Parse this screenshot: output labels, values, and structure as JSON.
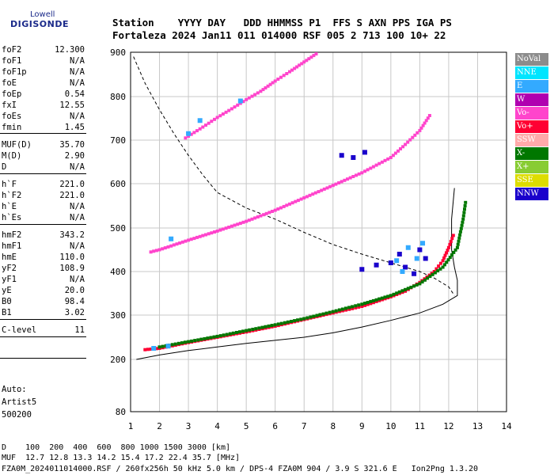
{
  "logo": {
    "line1": "Lowell",
    "line2": "DIGISONDE"
  },
  "header": {
    "row1": "Station    YYYY DAY   DDD HHMMSS P1  FFS S AXN PPS IGA PS",
    "row2": "Fortaleza 2024 Jan11 011 014000 RSF 005 2 713 100 10+ 22"
  },
  "params": [
    {
      "label": "foF2",
      "value": "12.300"
    },
    {
      "label": "foF1",
      "value": "N/A"
    },
    {
      "label": "foF1p",
      "value": "N/A"
    },
    {
      "label": "foE",
      "value": "N/A"
    },
    {
      "label": "foEp",
      "value": "0.54"
    },
    {
      "label": "fxI",
      "value": "12.55"
    },
    {
      "label": "foEs",
      "value": "N/A"
    },
    {
      "label": "fmin",
      "value": "1.45"
    },
    {
      "label": "MUF(D)",
      "value": "35.70"
    },
    {
      "label": "M(D)",
      "value": "2.90"
    },
    {
      "label": "D",
      "value": "N/A"
    },
    {
      "label": "h`F",
      "value": "221.0"
    },
    {
      "label": "h`F2",
      "value": "221.0"
    },
    {
      "label": "h`E",
      "value": "N/A"
    },
    {
      "label": "h`Es",
      "value": "N/A"
    },
    {
      "label": "hmF2",
      "value": "343.2"
    },
    {
      "label": "hmF1",
      "value": "N/A"
    },
    {
      "label": "hmE",
      "value": "110.0"
    },
    {
      "label": "yF2",
      "value": "108.9"
    },
    {
      "label": "yF1",
      "value": "N/A"
    },
    {
      "label": "yE",
      "value": "20.0"
    },
    {
      "label": "B0",
      "value": "98.4"
    },
    {
      "label": "B1",
      "value": "3.02"
    },
    {
      "label": "C-level",
      "value": "11"
    }
  ],
  "auto": {
    "line1": "Auto:",
    "line2": "Artist5",
    "line3": "500200"
  },
  "footer": {
    "line1": "D    100  200  400  600  800 1000 1500 3000 [km]",
    "line2": "MUF  12.7 12.8 13.3 14.2 15.4 17.2 22.4 35.7 [MHz]",
    "line3": "FZA0M_2024011014000.RSF / 260fx256h 50 kHz 5.0 km / DPS-4 FZA0M 904 / 3.9 S 321.6 E   Ion2Png 1.3.20"
  },
  "legend": [
    {
      "label": "NoVal",
      "color": "#8c8c8c"
    },
    {
      "label": "NNE",
      "color": "#00e5ff"
    },
    {
      "label": "E",
      "color": "#33aaff"
    },
    {
      "label": "W",
      "color": "#b000b0"
    },
    {
      "label": "Vo-",
      "color": "#ff44cc"
    },
    {
      "label": "Vo+",
      "color": "#ff0033"
    },
    {
      "label": "SSW",
      "color": "#ffaaaa"
    },
    {
      "label": "X-",
      "color": "#007700"
    },
    {
      "label": "X+",
      "color": "#88cc33"
    },
    {
      "label": "SSE",
      "color": "#dddd00"
    },
    {
      "label": "NNW",
      "color": "#1a00cc"
    }
  ],
  "chart_data": {
    "type": "scatter",
    "xlabel": "",
    "ylabel": "",
    "xlim": [
      1,
      14
    ],
    "ylim": [
      80,
      900
    ],
    "x_ticks": [
      1,
      2,
      3,
      4,
      5,
      6,
      7,
      8,
      9,
      10,
      11,
      12,
      13,
      14
    ],
    "y_ticks": [
      80,
      200,
      300,
      400,
      500,
      600,
      700,
      800,
      900
    ],
    "grid": true,
    "traces": [
      {
        "name": "O-trace 1st hop",
        "color": "#ff0033",
        "points": [
          [
            1.5,
            222
          ],
          [
            2,
            225
          ],
          [
            3,
            238
          ],
          [
            4,
            250
          ],
          [
            5,
            262
          ],
          [
            6,
            275
          ],
          [
            7,
            290
          ],
          [
            8,
            305
          ],
          [
            9,
            320
          ],
          [
            10,
            342
          ],
          [
            10.5,
            355
          ],
          [
            11,
            375
          ],
          [
            11.5,
            400
          ],
          [
            11.8,
            425
          ],
          [
            12,
            455
          ],
          [
            12.2,
            490
          ]
        ]
      },
      {
        "name": "X-trace 1st hop",
        "color": "#007700",
        "points": [
          [
            2,
            228
          ],
          [
            3,
            240
          ],
          [
            4,
            252
          ],
          [
            5,
            265
          ],
          [
            6,
            278
          ],
          [
            7,
            292
          ],
          [
            8,
            308
          ],
          [
            9,
            325
          ],
          [
            10,
            345
          ],
          [
            11,
            372
          ],
          [
            11.8,
            410
          ],
          [
            12.3,
            455
          ],
          [
            12.5,
            520
          ],
          [
            12.6,
            565
          ]
        ]
      },
      {
        "name": "O-trace 2nd hop",
        "color": "#ff44cc",
        "points": [
          [
            1.7,
            445
          ],
          [
            2,
            450
          ],
          [
            3,
            472
          ],
          [
            4,
            493
          ],
          [
            5,
            515
          ],
          [
            6,
            540
          ],
          [
            7,
            568
          ],
          [
            8,
            596
          ],
          [
            9,
            625
          ],
          [
            10,
            660
          ],
          [
            10.5,
            690
          ],
          [
            11,
            722
          ],
          [
            11.4,
            762
          ]
        ]
      },
      {
        "name": "O-trace 3rd hop",
        "color": "#ff44cc",
        "points": [
          [
            2.9,
            705
          ],
          [
            3.5,
            730
          ],
          [
            4,
            752
          ],
          [
            4.5,
            772
          ],
          [
            5,
            793
          ],
          [
            5.5,
            812
          ],
          [
            6,
            835
          ],
          [
            6.5,
            856
          ],
          [
            7,
            878
          ],
          [
            7.5,
            900
          ]
        ]
      },
      {
        "name": "NNW echoes",
        "color": "#1a00cc",
        "points": [
          [
            9,
            405
          ],
          [
            9.5,
            415
          ],
          [
            10,
            420
          ],
          [
            10.3,
            440
          ],
          [
            10.5,
            410
          ],
          [
            10.8,
            395
          ],
          [
            11,
            450
          ],
          [
            11.2,
            430
          ],
          [
            8.3,
            665
          ],
          [
            8.7,
            660
          ],
          [
            9.1,
            672
          ]
        ]
      },
      {
        "name": "E echoes",
        "color": "#33aaff",
        "points": [
          [
            10.2,
            425
          ],
          [
            10.6,
            455
          ],
          [
            10.9,
            430
          ],
          [
            11.1,
            465
          ],
          [
            10.4,
            400
          ],
          [
            1.8,
            225
          ],
          [
            2.3,
            230
          ],
          [
            3,
            715
          ],
          [
            3.4,
            745
          ],
          [
            2.4,
            475
          ],
          [
            4.8,
            790
          ]
        ]
      }
    ],
    "profile_solid": [
      [
        1.2,
        200
      ],
      [
        2,
        210
      ],
      [
        3,
        220
      ],
      [
        4,
        228
      ],
      [
        5,
        236
      ],
      [
        6,
        243
      ],
      [
        7,
        250
      ],
      [
        8,
        260
      ],
      [
        9,
        273
      ],
      [
        10,
        288
      ],
      [
        11,
        305
      ],
      [
        11.8,
        325
      ],
      [
        12.3,
        345
      ],
      [
        12.3,
        380
      ],
      [
        12.2,
        410
      ],
      [
        12.1,
        450
      ],
      [
        12.1,
        520
      ],
      [
        12.2,
        590
      ]
    ],
    "profile_dashed": [
      [
        1.1,
        890
      ],
      [
        1.5,
        830
      ],
      [
        2,
        770
      ],
      [
        2.5,
        715
      ],
      [
        3,
        665
      ],
      [
        3.5,
        620
      ],
      [
        4,
        580
      ],
      [
        5,
        545
      ],
      [
        6,
        520
      ],
      [
        7,
        490
      ],
      [
        8,
        462
      ],
      [
        9,
        440
      ],
      [
        10,
        420
      ],
      [
        11,
        400
      ],
      [
        11.5,
        385
      ],
      [
        12,
        365
      ],
      [
        12.2,
        345
      ]
    ]
  }
}
